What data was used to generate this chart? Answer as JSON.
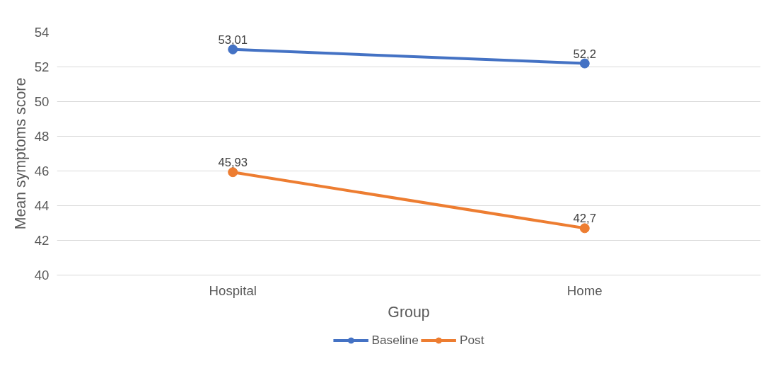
{
  "chart_data": {
    "type": "line",
    "xlabel": "Group",
    "ylabel": "Mean symptoms score",
    "categories": [
      "Hospital",
      "Home"
    ],
    "series": [
      {
        "name": "Baseline",
        "color": "#4472c4",
        "values": [
          53.01,
          52.2
        ],
        "value_labels": [
          "53,01",
          "52,2"
        ]
      },
      {
        "name": "Post",
        "color": "#ed7d31",
        "values": [
          45.93,
          42.7
        ],
        "value_labels": [
          "45,93",
          "42,7"
        ]
      }
    ],
    "ylim": [
      40,
      54
    ],
    "yticks": [
      40,
      42,
      44,
      46,
      48,
      50,
      52,
      54
    ],
    "grid": "y",
    "legend": "bottom",
    "marker": "circle",
    "line_style": "solid"
  }
}
